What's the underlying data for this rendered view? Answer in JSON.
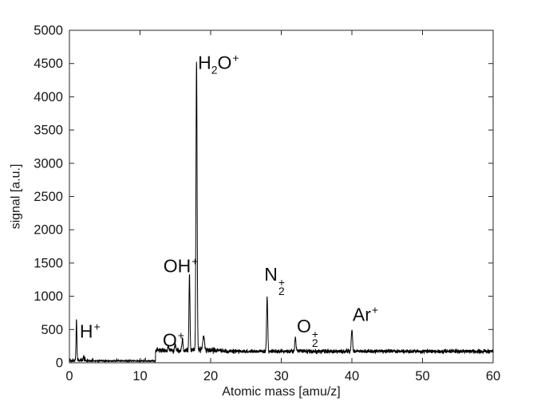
{
  "figure": {
    "background": "#ffffff",
    "axes_color": "#262626",
    "trace_color": "#000000",
    "text_color": "#171717"
  },
  "chart_data": {
    "type": "line",
    "title": "",
    "xlabel": "Atomic mass [amu/z]",
    "ylabel": "signal [a.u.]",
    "xlim": [
      0,
      60
    ],
    "ylim": [
      0,
      5000
    ],
    "x_ticks": [
      0,
      10,
      20,
      30,
      40,
      50,
      60
    ],
    "y_ticks": [
      0,
      500,
      1000,
      1500,
      2000,
      2500,
      3000,
      3500,
      4000,
      4500,
      5000
    ],
    "grid": false,
    "box": true,
    "tick_direction": "in",
    "legend": null,
    "series_description": "noisy mass-spectrometer signal trace, black line",
    "baseline_segments": [
      {
        "x_start": 0,
        "x_end": 12.2,
        "level": 28,
        "noise_amplitude": 18
      },
      {
        "x_start": 12.2,
        "x_end": 17.3,
        "level": 185,
        "noise_amplitude": 55
      },
      {
        "x_start": 17.3,
        "x_end": 21.5,
        "level": 190,
        "noise_amplitude": 60
      },
      {
        "x_start": 21.5,
        "x_end": 60,
        "level": 172,
        "noise_amplitude": 45
      }
    ],
    "peaks": [
      {
        "species": "H+",
        "mass": 1,
        "signal": 650,
        "sigma": 0.06
      },
      {
        "species": "",
        "mass": 2,
        "signal": 105,
        "sigma": 0.05
      },
      {
        "species": "",
        "mass": 14,
        "signal": 255,
        "sigma": 0.08
      },
      {
        "species": "",
        "mass": 15,
        "signal": 280,
        "sigma": 0.08
      },
      {
        "species": "O+",
        "mass": 16,
        "signal": 350,
        "sigma": 0.08
      },
      {
        "species": "OH+",
        "mass": 17,
        "signal": 1330,
        "sigma": 0.07
      },
      {
        "species": "H2O+",
        "mass": 18,
        "signal": 4550,
        "sigma": 0.08
      },
      {
        "species": "",
        "mass": 19,
        "signal": 400,
        "sigma": 0.12
      },
      {
        "species": "N2+",
        "mass": 28,
        "signal": 990,
        "sigma": 0.08
      },
      {
        "species": "O2+",
        "mass": 32,
        "signal": 385,
        "sigma": 0.08
      },
      {
        "species": "Ar+",
        "mass": 40,
        "signal": 510,
        "sigma": 0.09
      }
    ],
    "annotations": [
      {
        "id": "h-plus",
        "anchor_mass": 1.45,
        "anchor_signal": 470,
        "tokens": [
          {
            "text": "H"
          },
          {
            "sup": "+"
          }
        ]
      },
      {
        "id": "o-plus",
        "anchor_mass": 13.2,
        "anchor_signal": 330,
        "tokens": [
          {
            "text": "O"
          },
          {
            "sup": "+"
          }
        ]
      },
      {
        "id": "oh-plus",
        "anchor_mass": 13.3,
        "anchor_signal": 1450,
        "tokens": [
          {
            "text": "OH"
          },
          {
            "sup": "+"
          }
        ]
      },
      {
        "id": "h2o-plus",
        "anchor_mass": 18.2,
        "anchor_signal": 4510,
        "tokens": [
          {
            "text": "H"
          },
          {
            "sub": "2"
          },
          {
            "text": "O"
          },
          {
            "sup": "+"
          }
        ]
      },
      {
        "id": "n2-plus",
        "anchor_mass": 27.6,
        "anchor_signal": 1230,
        "tokens": [
          {
            "text": "N"
          },
          {
            "stack_sup": "+",
            "stack_sub": "2"
          }
        ]
      },
      {
        "id": "o2-plus",
        "anchor_mass": 32.2,
        "anchor_signal": 455,
        "tokens": [
          {
            "text": "O"
          },
          {
            "stack_sup": "+",
            "stack_sub": "2"
          }
        ]
      },
      {
        "id": "ar-plus",
        "anchor_mass": 40.1,
        "anchor_signal": 715,
        "tokens": [
          {
            "text": "Ar"
          },
          {
            "sup": "+"
          }
        ]
      }
    ]
  }
}
